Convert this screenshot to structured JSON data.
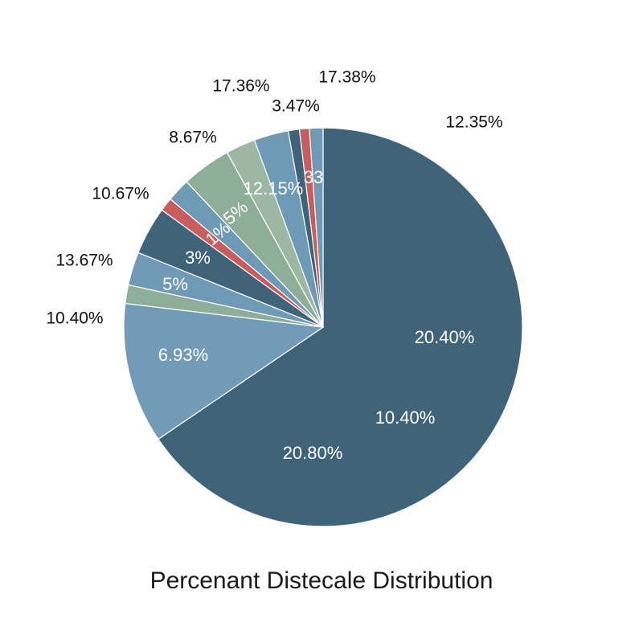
{
  "chart_data": {
    "type": "pie",
    "title": "Percenant Distecale  Distribution",
    "values": [
      65.5,
      11.4,
      1.5,
      2.7,
      3.9,
      1.1,
      1.9,
      4.0,
      2.4,
      2.8,
      0.9,
      0.8,
      1.1
    ],
    "colors": [
      "#3f6379",
      "#719bb6",
      "#8fae98",
      "#6f9ab5",
      "#3f6379",
      "#c95c5c",
      "#6f9ab5",
      "#8fae98",
      "#9cb8a3",
      "#6f9ab5",
      "#3f6379",
      "#c95c5c",
      "#6f9ab5"
    ],
    "annotations": [
      "17.36%",
      "17.38%",
      "3.47%",
      "12.35%",
      "8.67%",
      "10.67%",
      "13.67%",
      "10.40%",
      "12.15%",
      "33",
      "5%",
      "1%",
      "3%",
      "5%",
      "6.93%",
      "20.40%",
      "10.40%",
      "20.80%"
    ]
  }
}
